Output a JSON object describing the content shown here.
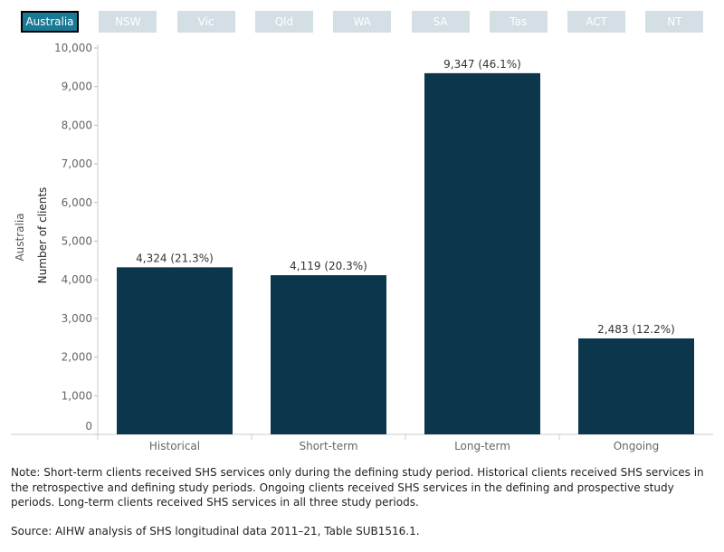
{
  "tabs": [
    {
      "label": "Australia",
      "active": true
    },
    {
      "label": "NSW",
      "active": false
    },
    {
      "label": "Vic",
      "active": false
    },
    {
      "label": "Qld",
      "active": false
    },
    {
      "label": "WA",
      "active": false
    },
    {
      "label": "SA",
      "active": false
    },
    {
      "label": "Tas",
      "active": false
    },
    {
      "label": "ACT",
      "active": false
    },
    {
      "label": "NT",
      "active": false
    }
  ],
  "chart_data": {
    "type": "bar",
    "row_label": "Australia",
    "ylabel": "Number of clients",
    "xlabel": "",
    "ylim": [
      0,
      10000
    ],
    "yticks": [
      0,
      1000,
      2000,
      3000,
      4000,
      5000,
      6000,
      7000,
      8000,
      9000,
      10000
    ],
    "categories": [
      "Historical",
      "Short-term",
      "Long-term",
      "Ongoing"
    ],
    "values": [
      4324,
      4119,
      9347,
      2483
    ],
    "percents": [
      "21.3%",
      "20.3%",
      "46.1%",
      "12.2%"
    ],
    "bar_color": "#0b364c",
    "grid": false
  },
  "note": "Note: Short-term clients received SHS services only during the defining study period. Historical clients received SHS services in the retrospective and defining study periods. Ongoing clients received SHS services in the defining and prospective study periods. Long-term clients received SHS services in all three study periods.",
  "source": "Source: AIHW analysis of SHS longitudinal data 2011–21, Table SUB1516.1."
}
